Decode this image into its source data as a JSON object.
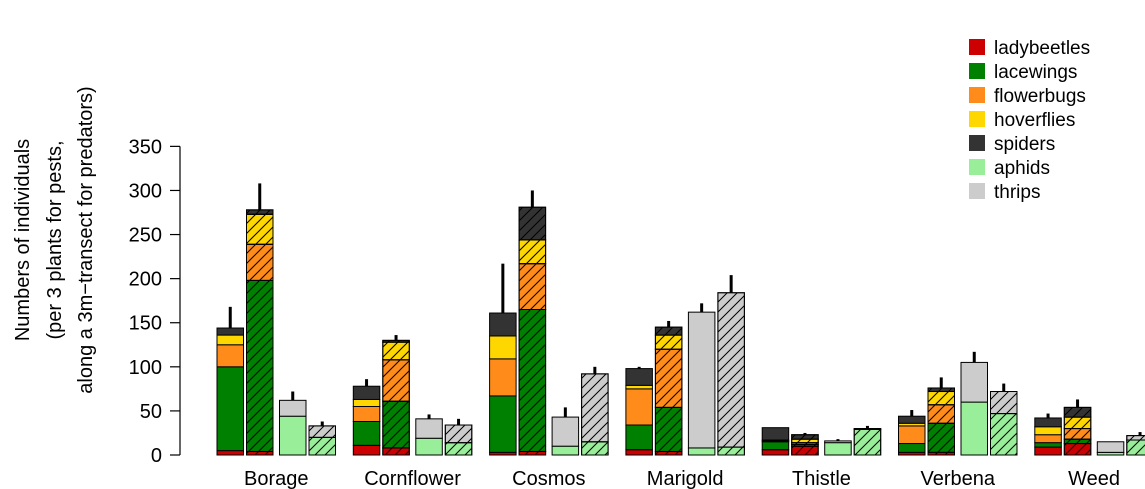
{
  "chart_data": {
    "type": "bar",
    "stacked": true,
    "ylabel_lines": [
      "Numbers of individuals",
      "(per 3 plants for pests,",
      "along a 3m−transect for predators)"
    ],
    "ylim": [
      0,
      350
    ],
    "yticks": [
      0,
      50,
      100,
      150,
      200,
      250,
      300,
      350
    ],
    "categories": [
      "Borage",
      "Cornflower",
      "Cosmos",
      "Marigold",
      "Thistle",
      "Verbena",
      "Weed"
    ],
    "legend_position": "top-right",
    "series": [
      {
        "name": "ladybeetles",
        "color": "#cc0000"
      },
      {
        "name": "lacewings",
        "color": "#008000"
      },
      {
        "name": "flowerbugs",
        "color": "#ff8c1a"
      },
      {
        "name": "hoverflies",
        "color": "#ffd700"
      },
      {
        "name": "spiders",
        "color": "#333333"
      },
      {
        "name": "aphids",
        "color": "#99ee99"
      },
      {
        "name": "thrips",
        "color": "#cccccc"
      }
    ],
    "groups": [
      {
        "category": "Borage",
        "bars": [
          {
            "group": "predators",
            "hatched": false,
            "error_top": 168,
            "segments": {
              "ladybeetles": 5,
              "lacewings": 95,
              "flowerbugs": 25,
              "hoverflies": 11,
              "spiders": 8
            }
          },
          {
            "group": "predators",
            "hatched": true,
            "error_top": 308,
            "segments": {
              "ladybeetles": 4,
              "lacewings": 194,
              "flowerbugs": 41,
              "hoverflies": 34,
              "spiders": 5
            }
          },
          {
            "group": "pests",
            "hatched": false,
            "error_top": 72,
            "segments": {
              "aphids": 44,
              "thrips": 18
            }
          },
          {
            "group": "pests",
            "hatched": true,
            "error_top": 38,
            "segments": {
              "aphids": 20,
              "thrips": 13
            }
          }
        ]
      },
      {
        "category": "Cornflower",
        "bars": [
          {
            "group": "predators",
            "hatched": false,
            "error_top": 86,
            "segments": {
              "ladybeetles": 11,
              "lacewings": 27,
              "flowerbugs": 17,
              "hoverflies": 8,
              "spiders": 15
            }
          },
          {
            "group": "predators",
            "hatched": true,
            "error_top": 136,
            "segments": {
              "ladybeetles": 8,
              "lacewings": 53,
              "flowerbugs": 47,
              "hoverflies": 20,
              "spiders": 2
            }
          },
          {
            "group": "pests",
            "hatched": false,
            "error_top": 46,
            "segments": {
              "aphids": 19,
              "thrips": 22
            }
          },
          {
            "group": "pests",
            "hatched": true,
            "error_top": 41,
            "segments": {
              "aphids": 14,
              "thrips": 20
            }
          }
        ]
      },
      {
        "category": "Cosmos",
        "bars": [
          {
            "group": "predators",
            "hatched": false,
            "error_top": 217,
            "segments": {
              "ladybeetles": 3,
              "lacewings": 64,
              "flowerbugs": 42,
              "hoverflies": 26,
              "spiders": 26
            }
          },
          {
            "group": "predators",
            "hatched": true,
            "error_top": 300,
            "segments": {
              "ladybeetles": 4,
              "lacewings": 161,
              "flowerbugs": 52,
              "hoverflies": 27,
              "spiders": 37
            }
          },
          {
            "group": "pests",
            "hatched": false,
            "error_top": 54,
            "segments": {
              "aphids": 10,
              "thrips": 33
            }
          },
          {
            "group": "pests",
            "hatched": true,
            "error_top": 100,
            "segments": {
              "aphids": 15,
              "thrips": 77
            }
          }
        ]
      },
      {
        "category": "Marigold",
        "bars": [
          {
            "group": "predators",
            "hatched": false,
            "error_top": 100,
            "segments": {
              "ladybeetles": 6,
              "lacewings": 28,
              "flowerbugs": 41,
              "hoverflies": 4,
              "spiders": 19
            }
          },
          {
            "group": "predators",
            "hatched": true,
            "error_top": 152,
            "segments": {
              "ladybeetles": 4,
              "lacewings": 50,
              "flowerbugs": 66,
              "hoverflies": 16,
              "spiders": 9
            }
          },
          {
            "group": "pests",
            "hatched": false,
            "error_top": 172,
            "segments": {
              "aphids": 8,
              "thrips": 154
            }
          },
          {
            "group": "pests",
            "hatched": true,
            "error_top": 204,
            "segments": {
              "aphids": 9,
              "thrips": 175
            }
          }
        ]
      },
      {
        "category": "Thistle",
        "bars": [
          {
            "group": "predators",
            "hatched": false,
            "error_top": 31,
            "segments": {
              "ladybeetles": 6,
              "lacewings": 9,
              "flowerbugs": 1,
              "hoverflies": 1,
              "spiders": 14
            }
          },
          {
            "group": "predators",
            "hatched": true,
            "error_top": 25,
            "segments": {
              "ladybeetles": 10,
              "lacewings": 2,
              "flowerbugs": 2,
              "hoverflies": 4,
              "spiders": 5
            }
          },
          {
            "group": "pests",
            "hatched": false,
            "error_top": 18,
            "segments": {
              "aphids": 14,
              "thrips": 2
            }
          },
          {
            "group": "pests",
            "hatched": true,
            "error_top": 33,
            "segments": {
              "aphids": 29,
              "thrips": 1
            }
          }
        ]
      },
      {
        "category": "Verbena",
        "bars": [
          {
            "group": "predators",
            "hatched": false,
            "error_top": 51,
            "segments": {
              "ladybeetles": 3,
              "lacewings": 10,
              "flowerbugs": 20,
              "hoverflies": 3,
              "spiders": 8
            }
          },
          {
            "group": "predators",
            "hatched": true,
            "error_top": 88,
            "segments": {
              "ladybeetles": 3,
              "lacewings": 33,
              "flowerbugs": 21,
              "hoverflies": 15,
              "spiders": 4
            }
          },
          {
            "group": "pests",
            "hatched": false,
            "error_top": 117,
            "segments": {
              "aphids": 60,
              "thrips": 45
            }
          },
          {
            "group": "pests",
            "hatched": true,
            "error_top": 81,
            "segments": {
              "aphids": 47,
              "thrips": 25
            }
          }
        ]
      },
      {
        "category": "Weed",
        "bars": [
          {
            "group": "predators",
            "hatched": false,
            "error_top": 47,
            "segments": {
              "ladybeetles": 9,
              "lacewings": 5,
              "flowerbugs": 9,
              "hoverflies": 9,
              "spiders": 10
            }
          },
          {
            "group": "predators",
            "hatched": true,
            "error_top": 63,
            "segments": {
              "ladybeetles": 13,
              "lacewings": 5,
              "flowerbugs": 12,
              "hoverflies": 13,
              "spiders": 11
            }
          },
          {
            "group": "pests",
            "hatched": false,
            "error_top": 15,
            "segments": {
              "aphids": 3,
              "thrips": 12
            }
          },
          {
            "group": "pests",
            "hatched": true,
            "error_top": 26,
            "segments": {
              "aphids": 17,
              "thrips": 5
            }
          }
        ]
      }
    ]
  }
}
